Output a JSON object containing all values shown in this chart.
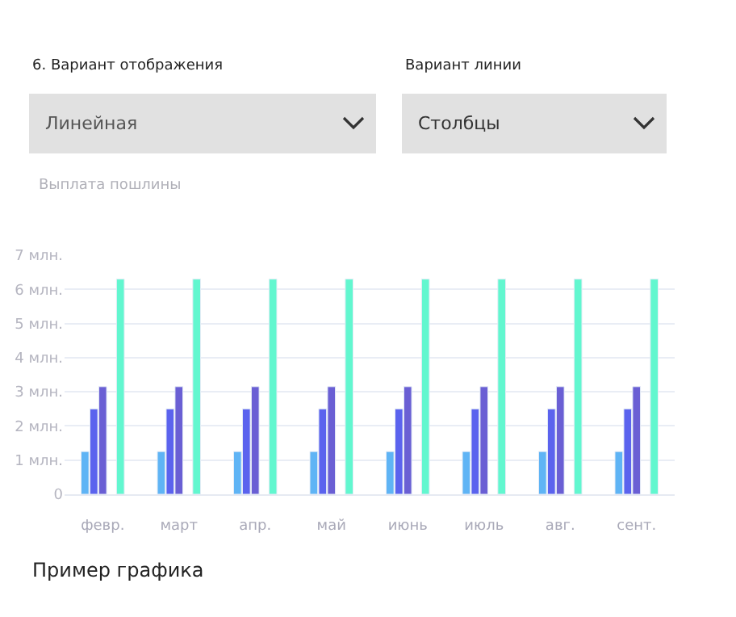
{
  "chart_data": {
    "type": "bar",
    "title": "Выплата пошлины",
    "categories": [
      "февр.",
      "март",
      "апр.",
      "май",
      "июнь",
      "июль",
      "авг.",
      "сент."
    ],
    "series": [
      {
        "color": "#5fb4f5",
        "values": [
          1.25,
          1.25,
          1.25,
          1.25,
          1.25,
          1.25,
          1.25,
          1.25
        ]
      },
      {
        "color": "#5b63ee",
        "values": [
          2.5,
          2.5,
          2.5,
          2.5,
          2.5,
          2.5,
          2.5,
          2.5
        ]
      },
      {
        "color": "#6a5fd4",
        "values": [
          3.15,
          3.15,
          3.15,
          3.15,
          3.15,
          3.15,
          3.15,
          3.15
        ]
      },
      {
        "color": "#ffffff",
        "values": [
          null,
          null,
          null,
          null,
          null,
          null,
          null,
          null
        ]
      },
      {
        "color": "#62f7cf",
        "values": [
          6.3,
          6.3,
          6.3,
          6.3,
          6.3,
          6.3,
          6.3,
          6.3
        ]
      }
    ],
    "ylim": [
      0,
      7
    ],
    "yticks": [
      0,
      {
        "value": 1,
        "label": "1 млн."
      },
      {
        "value": 2,
        "label": "2 млн."
      },
      {
        "value": 3,
        "label": "3 млн."
      },
      {
        "value": 4,
        "label": "4 млн."
      },
      {
        "value": 5,
        "label": "5 млн."
      },
      {
        "value": 6,
        "label": "6 млн."
      },
      {
        "value": 7,
        "label": "7 млн."
      }
    ],
    "grid": "y",
    "legend": false,
    "annotations": [
      "6. Вариант отображения",
      "Линейная",
      "Вариант линии",
      "Столбцы",
      "Пример графика"
    ]
  }
}
